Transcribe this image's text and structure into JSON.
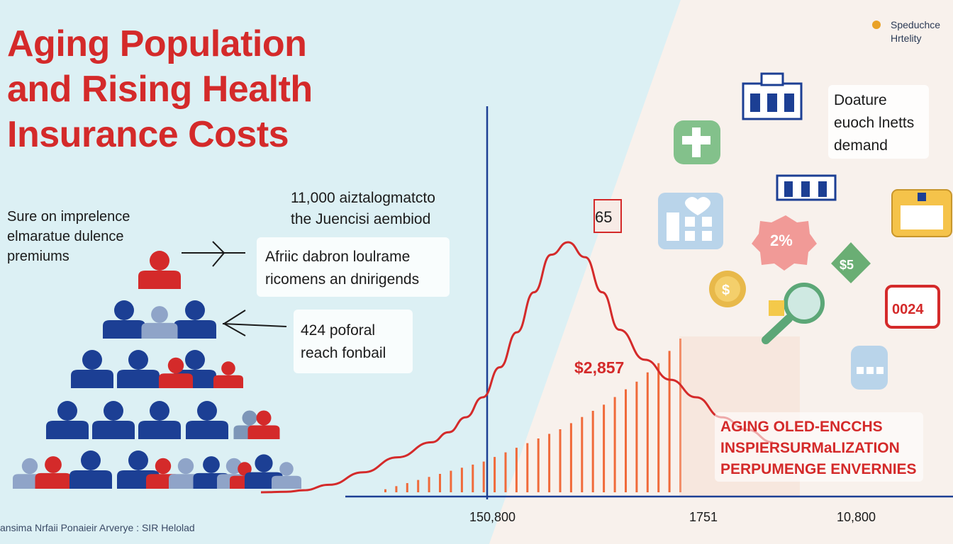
{
  "title": {
    "line1": "Aging Population",
    "line2": "and Rising Health",
    "line3": "Insurance Costs"
  },
  "legend": {
    "line1": "Speduchce",
    "line2": "Hrtelity",
    "color": "#e9a227"
  },
  "side_note": {
    "line1": "Sure on imprelence",
    "line2": "elmaratue dulence",
    "line3": "premiums"
  },
  "top_note": {
    "line1": "11,000 aiztalogmatcto",
    "line2": "the Juencisi aembiod"
  },
  "callout_1": {
    "line1": "Afriic dabron loulrame",
    "line2": "ricomens an dnirigends"
  },
  "callout_2": {
    "line1": "424 poforal",
    "line2": "reach fonbail"
  },
  "callout_3": {
    "line1": "Doature",
    "line2": "euoch lnetts",
    "line3": "demand"
  },
  "callout_4": {
    "line1": "AGING OLED-ENCCHS",
    "line2": "INSPIERSURMaLIZATION",
    "line3": "PERPUMENGE ENVERNIES"
  },
  "footer": "ansima Nrfaii Ponaieir Arverye : SIR Helolad",
  "icon_texts": {
    "badge_2pct": "2%",
    "badge_s5": "$5",
    "badge_dollar": "$",
    "badge_0024": "0024"
  },
  "colors": {
    "accent_red": "#d42a2a",
    "navy": "#1c3f94",
    "bar_orange": "#f06a3a",
    "bg_light_blue": "#dcf0f4",
    "bg_cream": "#f8f1ec"
  },
  "chart_data": {
    "type": "line",
    "title": "",
    "xlabel": "",
    "ylabel": "",
    "x_tick_labels": [
      "150,800",
      "1751",
      "10,800"
    ],
    "peak_label": "65",
    "cost_label": "$2,857",
    "curve_points": [
      [
        0,
        0
      ],
      [
        3,
        0.2
      ],
      [
        5,
        0.8
      ],
      [
        8,
        3
      ],
      [
        12,
        8
      ],
      [
        16,
        14
      ],
      [
        20,
        20
      ],
      [
        22,
        24
      ],
      [
        24,
        30
      ],
      [
        26,
        38
      ],
      [
        28,
        50
      ],
      [
        30,
        64
      ],
      [
        32,
        80
      ],
      [
        34,
        95
      ],
      [
        36,
        100
      ],
      [
        38,
        94
      ],
      [
        40,
        80
      ],
      [
        42,
        65
      ],
      [
        45,
        53
      ],
      [
        48,
        45
      ],
      [
        51,
        38
      ],
      [
        54,
        30
      ],
      [
        57,
        25
      ],
      [
        60,
        20
      ]
    ],
    "bars": {
      "description": "orange vertical bars increasing in height toward the peak",
      "values": [
        2,
        4,
        6,
        8,
        10,
        12,
        14,
        16,
        18,
        20,
        23,
        26,
        29,
        32,
        35,
        38,
        41,
        45,
        49,
        53,
        57,
        62,
        67,
        72,
        78,
        84,
        92,
        100
      ]
    }
  }
}
